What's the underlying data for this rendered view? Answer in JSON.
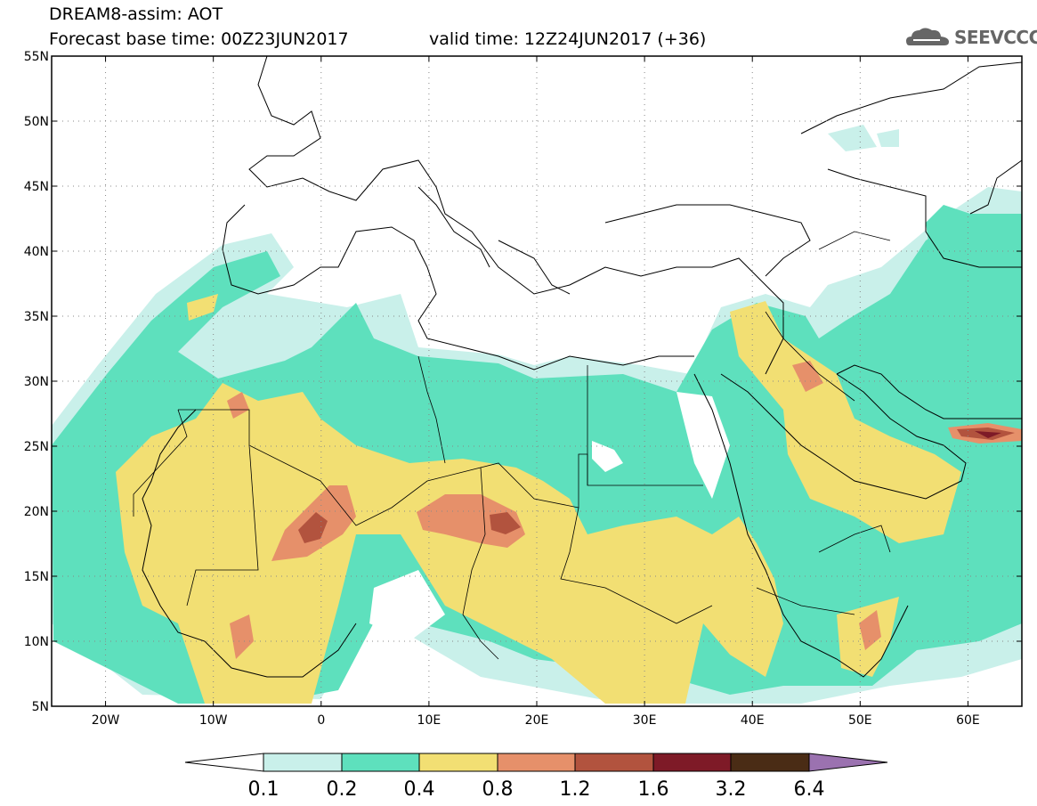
{
  "header": {
    "title_line1": "DREAM8-assim: AOT",
    "title_line2": "Forecast base time: 00Z23JUN2017",
    "valid_time": "valid time: 12Z24JUN2017 (+36)"
  },
  "logo": {
    "text": "SEEVCCC",
    "icon": "cloud-icon"
  },
  "map": {
    "lat_labels": [
      "55N",
      "50N",
      "45N",
      "40N",
      "35N",
      "30N",
      "25N",
      "20N",
      "15N",
      "10N",
      "5N"
    ],
    "lon_labels": [
      "20W",
      "10W",
      "0",
      "10E",
      "20E",
      "30E",
      "40E",
      "50E",
      "60E"
    ],
    "colors": {
      "c1": "#c9f0ea",
      "c2": "#5ee0bd",
      "c3": "#f2df73",
      "c4": "#e6906a",
      "c5": "#b2533e",
      "c6": "#7e1a27",
      "c7": "#4a2c15",
      "c8": "#9b72b0"
    }
  },
  "colorbar": {
    "labels": [
      "0.1",
      "0.2",
      "0.4",
      "0.8",
      "1.2",
      "1.6",
      "3.2",
      "6.4"
    ]
  }
}
